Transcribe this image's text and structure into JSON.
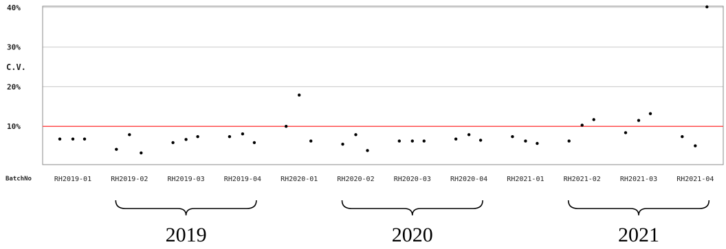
{
  "chart_data": {
    "type": "scatter",
    "ylabel": "C.V.",
    "xlabel": "BatchNo",
    "ylim": [
      0,
      41
    ],
    "yticks": [
      10,
      20,
      30,
      40
    ],
    "ytick_labels": [
      "10%",
      "20%",
      "30%",
      "40%"
    ],
    "reference_line": {
      "y": 10,
      "color": "#ff4d4d"
    },
    "grid": true,
    "categories": [
      "RH2019-01",
      "RH2019-02",
      "RH2019-03",
      "RH2019-04",
      "RH2020-01",
      "RH2020-02",
      "RH2020-03",
      "RH2020-04",
      "RH2021-01",
      "RH2021-02",
      "RH2021-03",
      "RH2021-04"
    ],
    "series": [
      {
        "values": [
          [
            6.8,
            6.8,
            6.8
          ],
          [
            4.2,
            7.9,
            3.3
          ],
          [
            5.9,
            6.7,
            7.4
          ],
          [
            7.4,
            8.1,
            5.9
          ],
          [
            10.0,
            17.9,
            6.3
          ],
          [
            5.5,
            7.9,
            3.9
          ],
          [
            6.3,
            6.3,
            6.3
          ],
          [
            6.8,
            7.9,
            6.5
          ],
          [
            7.4,
            6.3,
            5.7
          ],
          [
            6.3,
            10.3,
            11.7
          ],
          [
            8.4,
            11.5,
            13.2
          ],
          [
            7.4,
            5.1,
            41.0
          ]
        ]
      }
    ],
    "group_labels": [
      {
        "label": "2019",
        "from": 1,
        "to": 3
      },
      {
        "label": "2020",
        "from": 5,
        "to": 7
      },
      {
        "label": "2021",
        "from": 9,
        "to": 11
      }
    ]
  },
  "colors": {
    "grid": "#c8c8c8",
    "axis": "#888888",
    "marker": "#000000",
    "reference": "#ff4d4d"
  }
}
